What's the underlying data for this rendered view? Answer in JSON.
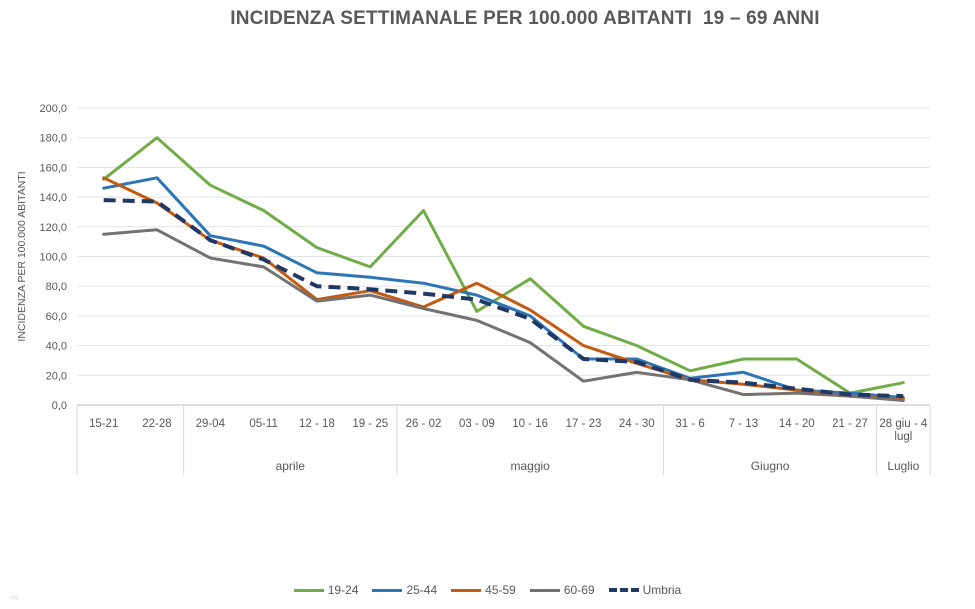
{
  "chart_data": {
    "type": "line",
    "title": "INCIDENZA SETTIMANALE PER 100.000 ABITANTI  19 – 69 ANNI",
    "ylabel": "INCIDENZA PER 100.000 ABITANTI",
    "ylim": [
      0,
      200
    ],
    "yticks": [
      "0,0",
      "20,0",
      "40,0",
      "60,0",
      "80,0",
      "100,0",
      "120,0",
      "140,0",
      "160,0",
      "180,0",
      "200,0"
    ],
    "categories": [
      "15-21",
      "22-28",
      "29-04",
      "05-11",
      "12 - 18",
      "19 - 25",
      "26 - 02",
      "03 - 09",
      "10 - 16",
      "17 - 23",
      "24 - 30",
      "31 - 6",
      "7 - 13",
      "14 - 20",
      "21 - 27",
      "28 giu - 4 lugl"
    ],
    "category_lines": [
      [
        "15-21"
      ],
      [
        "22-28"
      ],
      [
        "29-04"
      ],
      [
        "05-11"
      ],
      [
        "12 - 18"
      ],
      [
        "19 - 25"
      ],
      [
        "26 - 02"
      ],
      [
        "03 - 09"
      ],
      [
        "10 - 16"
      ],
      [
        "17 - 23"
      ],
      [
        "24 - 30"
      ],
      [
        "31 - 6"
      ],
      [
        "7 - 13"
      ],
      [
        "14 - 20"
      ],
      [
        "21 - 27"
      ],
      [
        "28 giu - 4",
        "lugl"
      ]
    ],
    "groups": [
      {
        "label": "",
        "start": 0,
        "end": 2
      },
      {
        "label": "aprile",
        "start": 2,
        "end": 6
      },
      {
        "label": "maggio",
        "start": 6,
        "end": 11
      },
      {
        "label": "Giugno",
        "start": 11,
        "end": 15
      },
      {
        "label": "Luglio",
        "start": 15,
        "end": 16
      }
    ],
    "grid": true,
    "legend_position": "bottom",
    "series": [
      {
        "name": "19-24",
        "color": "#70AD47",
        "dashed": false,
        "values": [
          152,
          180,
          148,
          131,
          106,
          93,
          131,
          63,
          85,
          53,
          40,
          23,
          31,
          31,
          8,
          15
        ]
      },
      {
        "name": "25-44",
        "color": "#2E75B6",
        "dashed": false,
        "values": [
          146,
          153,
          114,
          107,
          89,
          86,
          82,
          74,
          60,
          31,
          31,
          18,
          22,
          10,
          8,
          5
        ]
      },
      {
        "name": "45-59",
        "color": "#C55A11",
        "dashed": false,
        "values": [
          153,
          136,
          111,
          99,
          71,
          77,
          66,
          82,
          64,
          40,
          28,
          17,
          14,
          10,
          6,
          4
        ]
      },
      {
        "name": "60-69",
        "color": "#767171",
        "dashed": false,
        "values": [
          115,
          118,
          99,
          93,
          70,
          74,
          65,
          57,
          42,
          16,
          22,
          17,
          7,
          8,
          6,
          3
        ]
      },
      {
        "name": "Umbria",
        "color": "#1F3864",
        "dashed": true,
        "values": [
          138,
          137,
          111,
          98,
          80,
          78,
          75,
          71,
          58,
          31,
          29,
          17,
          15,
          11,
          7,
          6
        ]
      }
    ]
  }
}
